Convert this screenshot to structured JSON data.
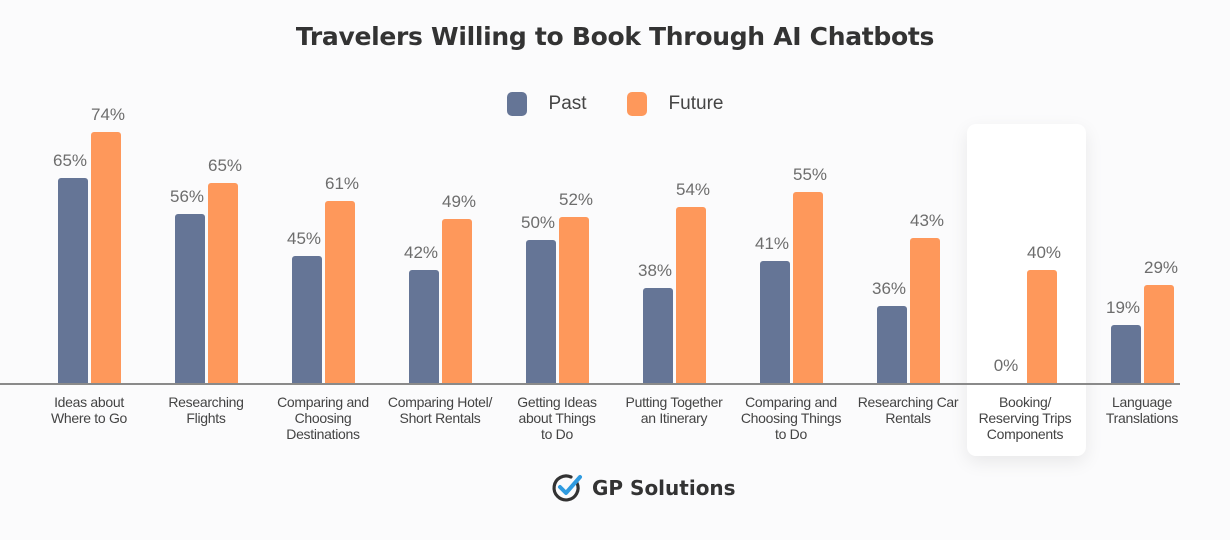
{
  "chart_data": {
    "type": "bar",
    "title": "Travelers Willing to Book Through AI Chatbots",
    "xlabel": "",
    "ylabel": "",
    "ylim": [
      0,
      80
    ],
    "grid": false,
    "legend_position": "top-center",
    "categories": [
      "Ideas about Where to Go",
      "Researching Flights",
      "Comparing and Choosing Destinations",
      "Comparing Hotel/ Short Rentals",
      "Getting Ideas about Things to Do",
      "Putting Together an Itinerary",
      "Comparing and Choosing Things to Do",
      "Researching Car Rentals",
      "Booking/ Reserving Trips Components",
      "Language Translations"
    ],
    "series": [
      {
        "name": "Past",
        "color": "#657596",
        "values": [
          65,
          56,
          45,
          42,
          50,
          38,
          41,
          36,
          0,
          19
        ]
      },
      {
        "name": "Future",
        "color": "#fe985b",
        "values": [
          74,
          65,
          61,
          49,
          52,
          54,
          55,
          43,
          40,
          29
        ]
      }
    ],
    "highlighted_category": "Booking/ Reserving Trips Components"
  },
  "title": "Travelers Willing to Book Through AI Chatbots",
  "legend": [
    {
      "label": "Past",
      "color": "#657596"
    },
    {
      "label": "Future",
      "color": "#fe985b"
    }
  ],
  "labels": {
    "cat_lines": [
      "Ideas about\nWhere to Go",
      "Researching\nFlights",
      "Comparing and\nChoosing\nDestinations",
      "Comparing Hotel/\nShort Rentals",
      "Getting Ideas\nabout Things\nto Do",
      "Putting Together\nan Itinerary",
      "Comparing and\nChoosing Things\nto Do",
      "Researching Car\nRentals",
      "Booking/\nReserving Trips\nComponents",
      "Language\nTranslations"
    ],
    "past": [
      "65%",
      "56%",
      "45%",
      "42%",
      "50%",
      "38%",
      "41%",
      "36%",
      "0%",
      "19%"
    ],
    "future": [
      "74%",
      "65%",
      "61%",
      "49%",
      "52%",
      "54%",
      "55%",
      "43%",
      "40%",
      "29%"
    ]
  },
  "layout": {
    "centers": [
      89,
      206,
      323,
      440,
      557,
      674,
      791,
      908,
      1025,
      1142
    ],
    "past_tops": [
      178,
      214,
      256,
      270,
      240,
      288,
      261,
      306,
      383,
      325
    ],
    "future_tops": [
      132,
      183,
      201,
      219,
      217,
      207,
      192,
      238,
      270,
      285
    ]
  },
  "logo": {
    "text": "GP Solutions",
    "check_color": "#2f9be0"
  }
}
